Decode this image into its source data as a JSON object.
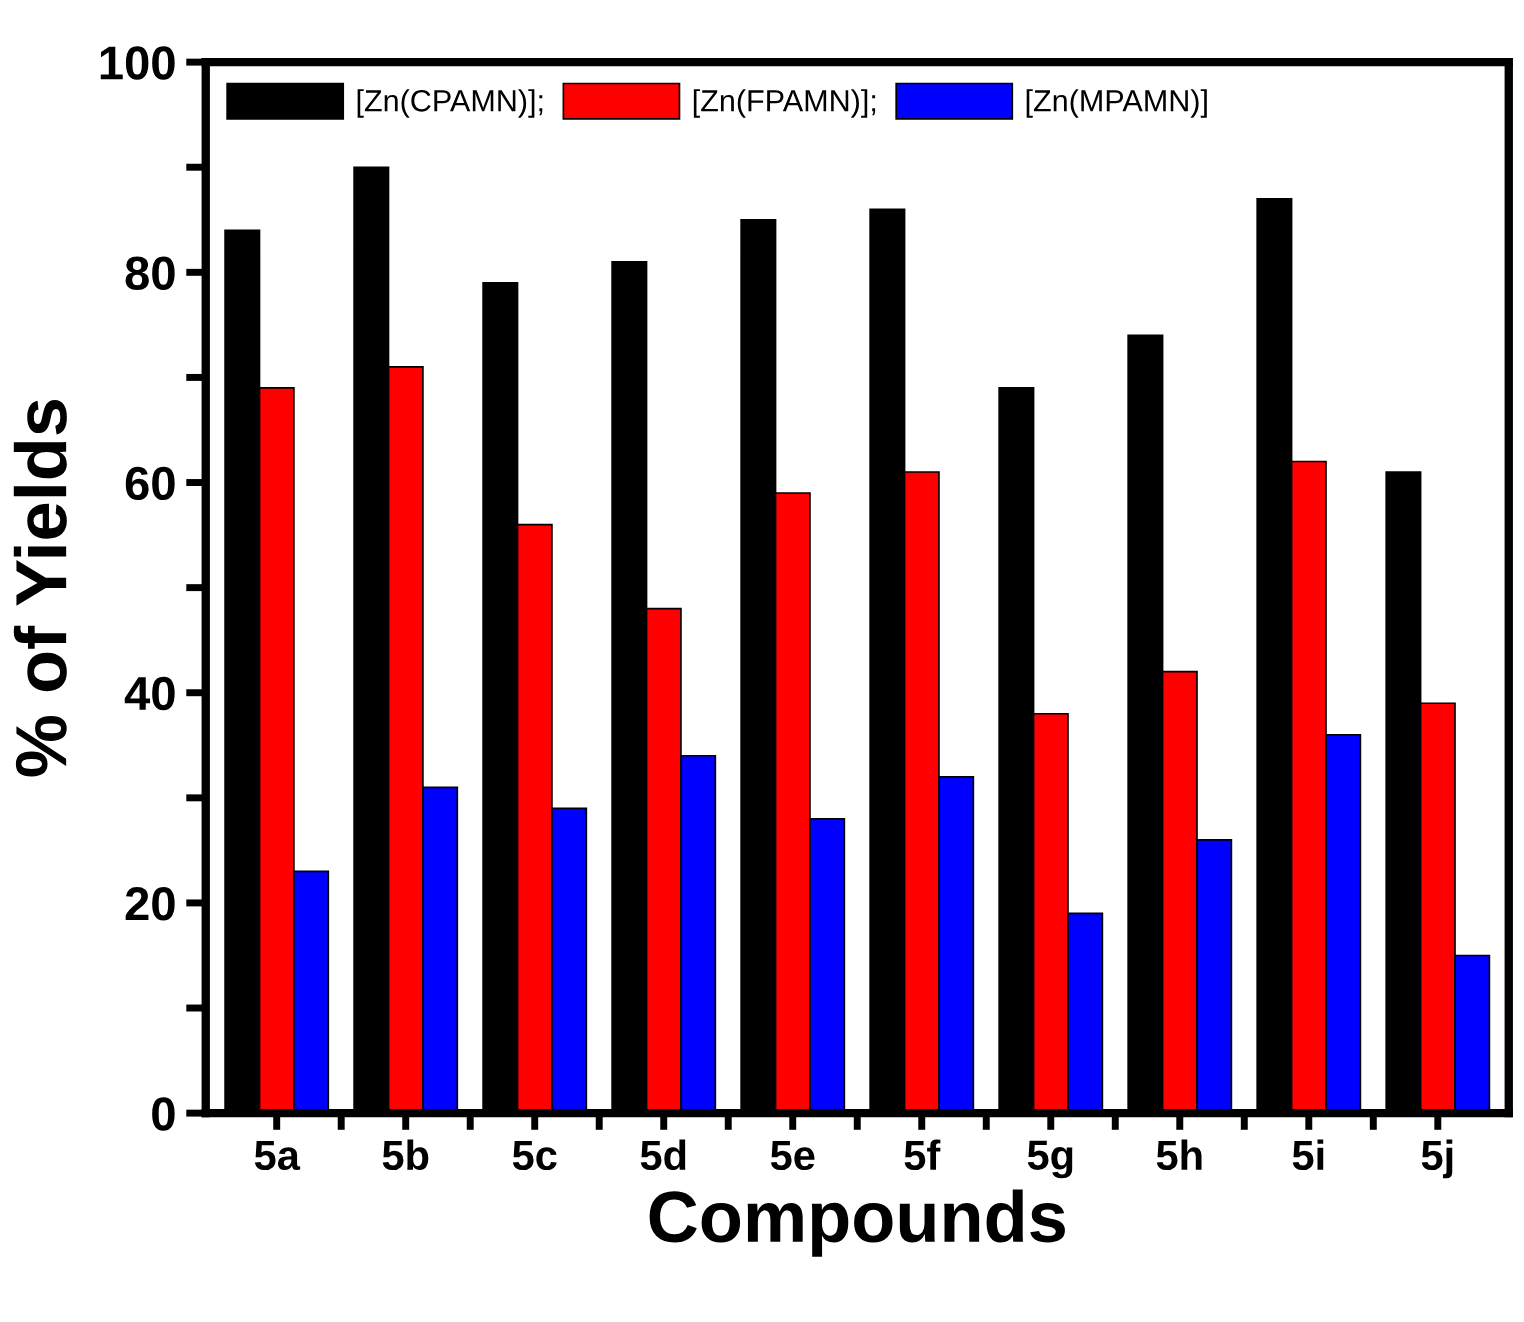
{
  "chart_data": {
    "type": "bar",
    "xlabel": "Compounds",
    "ylabel": "% of Yields",
    "categories": [
      "5a",
      "5b",
      "5c",
      "5d",
      "5e",
      "5f",
      "5g",
      "5h",
      "5i",
      "5j"
    ],
    "series": [
      {
        "name": "[Zn(CPAMN)];",
        "color": "#000000",
        "values": [
          84,
          90,
          79,
          81,
          85,
          86,
          69,
          74,
          87,
          61
        ]
      },
      {
        "name": "[Zn(FPAMN)];",
        "color": "#ff0000",
        "values": [
          69,
          71,
          56,
          48,
          59,
          61,
          38,
          42,
          62,
          39
        ]
      },
      {
        "name": "[Zn(MPAMN)]",
        "color": "#0000ff",
        "values": [
          23,
          31,
          29,
          34,
          28,
          32,
          19,
          26,
          36,
          15
        ]
      }
    ],
    "ylim": [
      0,
      100
    ],
    "yticks": [
      0,
      {
        "value": 10,
        "label": null
      },
      20,
      {
        "value": 30,
        "label": null
      },
      40,
      {
        "value": 50,
        "label": null
      },
      60,
      {
        "value": 70,
        "label": null
      },
      80,
      {
        "value": 90,
        "label": null
      },
      100
    ],
    "grid": false,
    "legend": "top"
  }
}
